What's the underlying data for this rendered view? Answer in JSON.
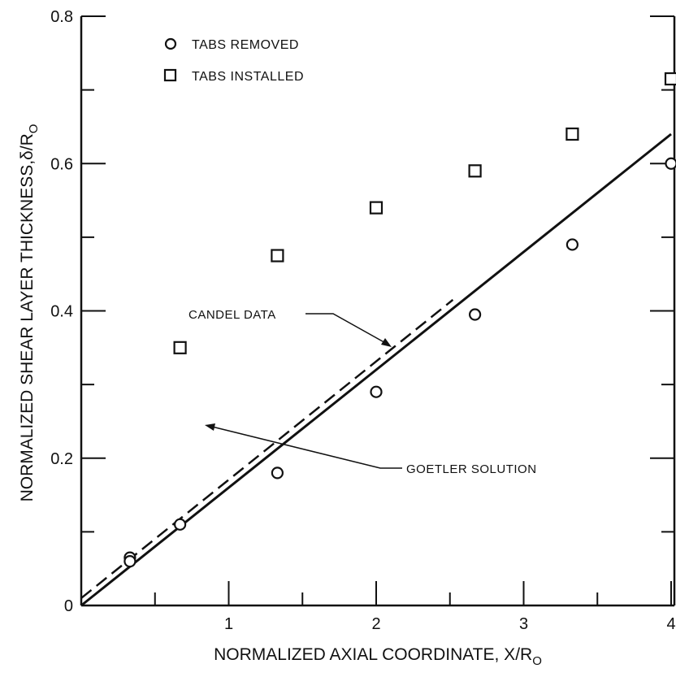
{
  "chart_data": {
    "type": "scatter",
    "xlabel": "NORMALIZED AXIAL COORDINATE, X/R",
    "xlabel_sub": "O",
    "ylabel": "NORMALIZED SHEAR LAYER THICKNESS,δ/R",
    "ylabel_sub": "O",
    "xlim": [
      0,
      4
    ],
    "ylim": [
      0,
      0.8
    ],
    "x_ticks": [
      {
        "value": 1,
        "label": "1"
      },
      {
        "value": 2,
        "label": "2"
      },
      {
        "value": 3,
        "label": "3"
      },
      {
        "value": 4,
        "label": "4"
      }
    ],
    "y_ticks": [
      {
        "value": 0,
        "label": "0"
      },
      {
        "value": 0.2,
        "label": "0.2"
      },
      {
        "value": 0.4,
        "label": "0.4"
      },
      {
        "value": 0.6,
        "label": "0.6"
      },
      {
        "value": 0.8,
        "label": "0.8"
      }
    ],
    "minor_x_ticks": [
      0.5,
      1.5,
      2.5,
      3.5
    ],
    "minor_y_ticks": [
      0.1,
      0.3,
      0.5,
      0.7
    ],
    "legend_position": "top-left",
    "series": [
      {
        "name": "TABS REMOVED",
        "marker": "circle",
        "points": [
          {
            "x": 0.33,
            "y": 0.065
          },
          {
            "x": 0.33,
            "y": 0.06
          },
          {
            "x": 0.67,
            "y": 0.11
          },
          {
            "x": 1.33,
            "y": 0.18
          },
          {
            "x": 2.0,
            "y": 0.29
          },
          {
            "x": 2.67,
            "y": 0.395
          },
          {
            "x": 3.33,
            "y": 0.49
          },
          {
            "x": 4.0,
            "y": 0.6
          }
        ]
      },
      {
        "name": "TABS INSTALLED",
        "marker": "square",
        "points": [
          {
            "x": 0.67,
            "y": 0.35
          },
          {
            "x": 1.33,
            "y": 0.475
          },
          {
            "x": 2.0,
            "y": 0.54
          },
          {
            "x": 2.67,
            "y": 0.59
          },
          {
            "x": 3.33,
            "y": 0.64
          },
          {
            "x": 4.0,
            "y": 0.715
          }
        ]
      }
    ],
    "lines": [
      {
        "name": "GOETLER SOLUTION",
        "style": "solid",
        "points": [
          {
            "x": 0,
            "y": 0
          },
          {
            "x": 4.0,
            "y": 0.64
          }
        ]
      },
      {
        "name": "CANDEL DATA",
        "style": "dashed",
        "points": [
          {
            "x": 0,
            "y": 0.01
          },
          {
            "x": 2.52,
            "y": 0.415
          }
        ]
      }
    ],
    "annotations": [
      {
        "text": "CANDEL DATA",
        "target_line": "CANDEL DATA"
      },
      {
        "text": "GOETLER SOLUTION",
        "target_line": "GOETLER SOLUTION"
      }
    ]
  }
}
